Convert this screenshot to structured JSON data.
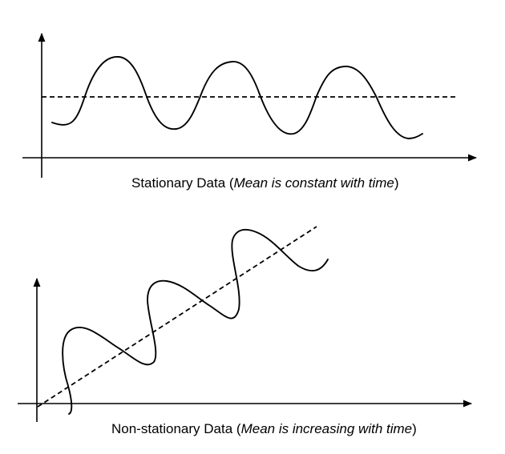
{
  "top_panel": {
    "caption_prefix": "Stationary Data (",
    "caption_emphasis": "Mean is constant with time",
    "caption_suffix": ")"
  },
  "bottom_panel": {
    "caption_prefix": "Non-stationary Data (",
    "caption_emphasis": "Mean is increasing with time",
    "caption_suffix": ")"
  },
  "colors": {
    "stroke": "#000000",
    "background": "#ffffff"
  }
}
